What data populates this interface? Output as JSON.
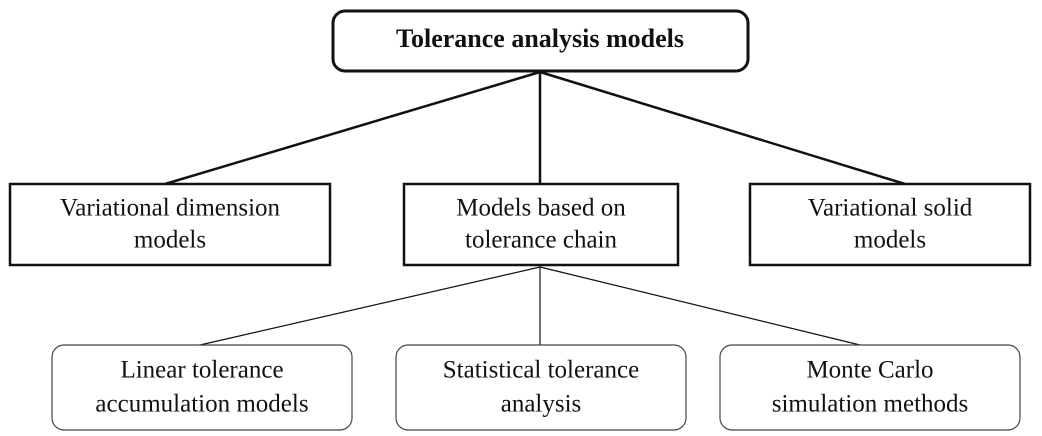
{
  "root": {
    "label": "Tolerance analysis models"
  },
  "level1": [
    {
      "label": [
        "Variational dimension",
        "models"
      ]
    },
    {
      "label": [
        "Models based on",
        "tolerance chain"
      ]
    },
    {
      "label": [
        "Variational solid",
        "models"
      ]
    }
  ],
  "level2": [
    {
      "label": [
        "Linear tolerance",
        "accumulation models"
      ]
    },
    {
      "label": [
        "Statistical tolerance",
        "analysis"
      ]
    },
    {
      "label": [
        "Monte Carlo",
        "simulation methods"
      ]
    }
  ]
}
